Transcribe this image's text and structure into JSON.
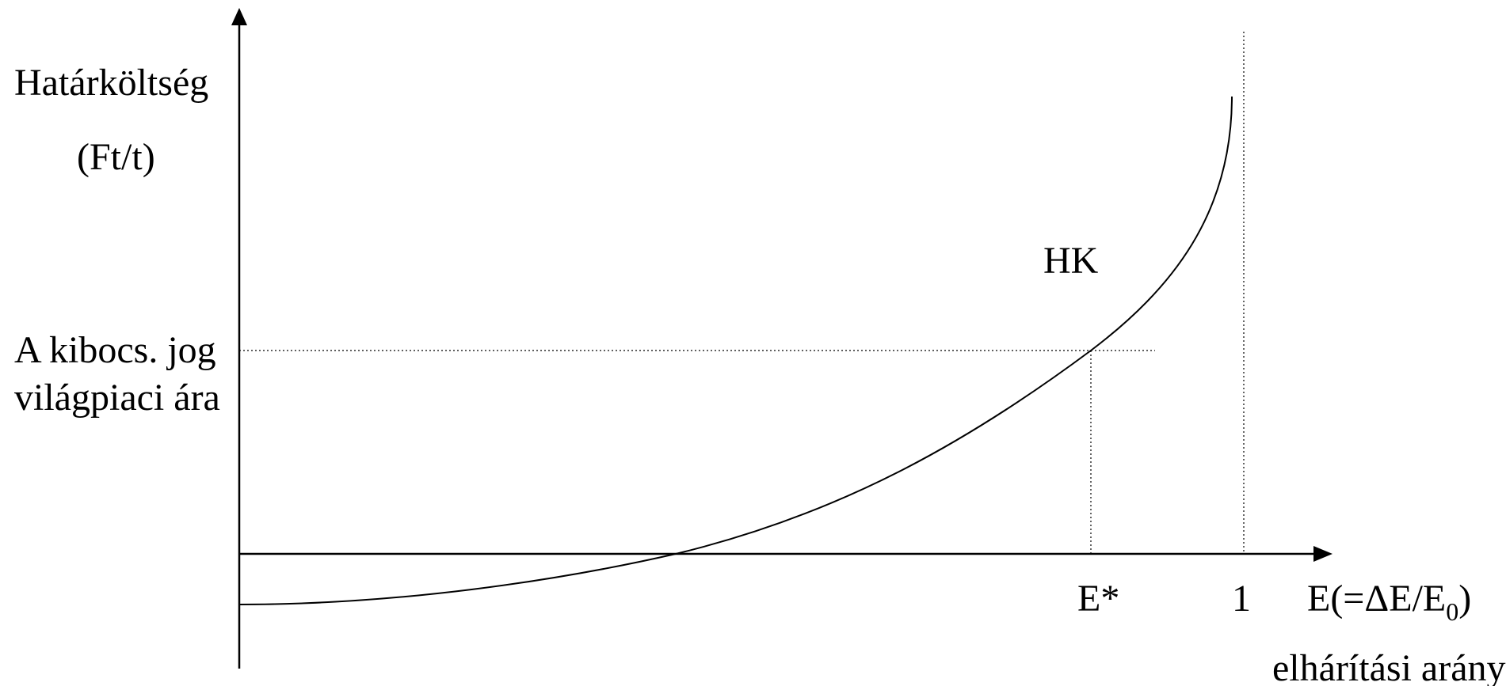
{
  "diagram": {
    "y_axis_title": "Határköltség",
    "y_axis_unit": "(Ft/t)",
    "price_label_line1": "A kibocs. jog",
    "price_label_line2": "világpiaci ára",
    "curve_label": "HK",
    "e_star_label": "E*",
    "one_label": "1",
    "x_axis_formula_prefix": "E(=ΔE/E",
    "x_axis_formula_subscript": "0",
    "x_axis_formula_suffix": ")",
    "x_axis_caption": "elhárítási arány",
    "colors": {
      "line": "#000000",
      "background": "#ffffff"
    }
  }
}
